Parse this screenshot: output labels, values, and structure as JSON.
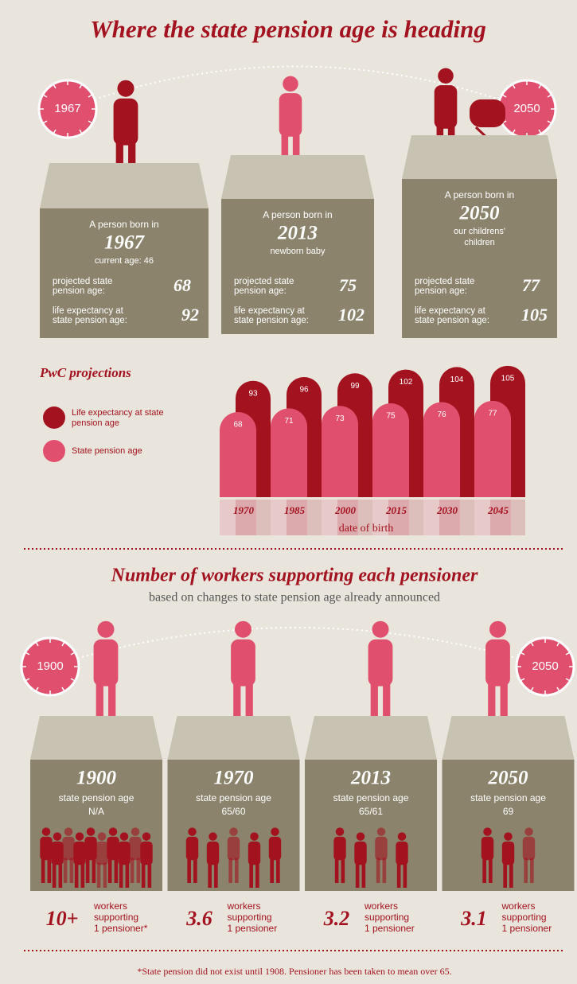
{
  "title": "Where the state pension age is heading",
  "top_clocks": [
    "1967",
    "2050"
  ],
  "people": [
    {
      "intro": "A person born in",
      "year": "1967",
      "note": [
        "current age: 46"
      ],
      "spa_label": [
        "projected state",
        "pension age:"
      ],
      "spa": 68,
      "le_label": [
        "life expectancy at",
        "state pension age:"
      ],
      "le": 92
    },
    {
      "intro": "A person born in",
      "year": "2013",
      "note": [
        "newborn baby"
      ],
      "spa_label": [
        "projected state",
        "pension age:"
      ],
      "spa": 75,
      "le_label": [
        "life expectancy at",
        "state pension age:"
      ],
      "le": 102
    },
    {
      "intro": "A person born in",
      "year": "2050",
      "note": [
        "our childrens'",
        "children"
      ],
      "spa_label": [
        "projected state",
        "pension age:"
      ],
      "spa": 77,
      "le_label": [
        "life expectancy at",
        "state pension age:"
      ],
      "le": 105
    }
  ],
  "chart_data": {
    "type": "bar",
    "title": "PwC projections",
    "x_label": "date of birth",
    "categories": [
      "1970",
      "1985",
      "2000",
      "2015",
      "2030",
      "2045"
    ],
    "series": [
      {
        "name": "Life expectancy at state pension age",
        "color": "#a3121f",
        "values": [
          93,
          96,
          99,
          102,
          104,
          105
        ]
      },
      {
        "name": "State pension age",
        "color": "#e0506e",
        "values": [
          68,
          71,
          73,
          75,
          76,
          77
        ]
      }
    ],
    "ylim": [
      0,
      110
    ]
  },
  "workers": {
    "title": "Number of workers supporting each pensioner",
    "subtitle": "based on changes to state pension age already announced",
    "clocks": [
      "1900",
      "2050"
    ],
    "eras": [
      {
        "year": "1900",
        "spa_label": "state pension age",
        "spa": "N/A",
        "count": "10+",
        "text": [
          "workers",
          "supporting",
          "1 pensioner*"
        ]
      },
      {
        "year": "1970",
        "spa_label": "state pension age",
        "spa": "65/60",
        "count": 3.6,
        "text": [
          "workers",
          "supporting",
          "1 pensioner"
        ]
      },
      {
        "year": "2013",
        "spa_label": "state pension age",
        "spa": "65/61",
        "count": 3.2,
        "text": [
          "workers",
          "supporting",
          "1 pensioner"
        ]
      },
      {
        "year": "2050",
        "spa_label": "state pension age",
        "spa": "69",
        "count": 3.1,
        "text": [
          "workers",
          "supporting",
          "1 pensioner"
        ]
      }
    ]
  },
  "footnote": "*State pension did not exist until 1908. Pensioner has been taken to mean over 65."
}
